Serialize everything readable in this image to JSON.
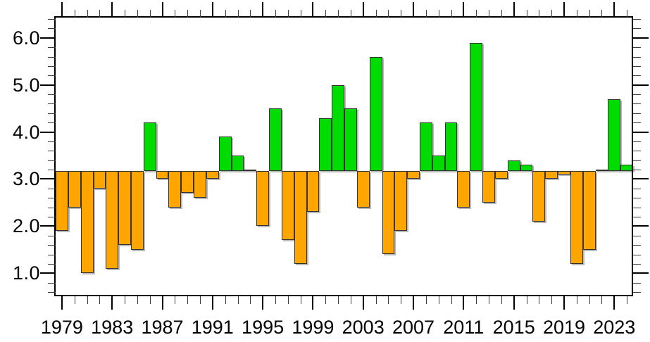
{
  "chart_data": {
    "type": "bar",
    "title": "",
    "xlabel": "",
    "ylabel": "",
    "grid": false,
    "legend": "none",
    "baseline": 3.17,
    "ylim": [
      0.51,
      6.43
    ],
    "x": [
      1979,
      1980,
      1981,
      1982,
      1983,
      1984,
      1985,
      1986,
      1987,
      1988,
      1989,
      1990,
      1991,
      1992,
      1993,
      1994,
      1995,
      1996,
      1997,
      1998,
      1999,
      2000,
      2001,
      2002,
      2003,
      2004,
      2005,
      2006,
      2007,
      2008,
      2009,
      2010,
      2011,
      2012,
      2013,
      2014,
      2015,
      2016,
      2017,
      2018,
      2019,
      2020,
      2021,
      2022,
      2023,
      2024
    ],
    "values": [
      1.9,
      2.4,
      1.0,
      2.8,
      1.1,
      1.6,
      1.5,
      4.2,
      3.0,
      2.4,
      2.7,
      2.6,
      3.0,
      3.9,
      3.5,
      3.2,
      2.0,
      4.5,
      1.7,
      1.2,
      2.3,
      4.3,
      5.0,
      4.5,
      2.4,
      5.6,
      1.4,
      1.9,
      3.0,
      4.2,
      3.5,
      4.2,
      2.4,
      5.9,
      2.5,
      3.0,
      3.4,
      3.3,
      2.1,
      3.0,
      3.1,
      1.2,
      1.5,
      3.2,
      4.7,
      3.3
    ],
    "y_major_ticks": [
      1.0,
      2.0,
      3.0,
      4.0,
      5.0,
      6.0
    ],
    "y_major_tick_labels": [
      "1.0",
      "2.0",
      "3.0",
      "4.0",
      "5.0",
      "6.0"
    ],
    "y_minor_step": 0.2,
    "x_major_tick_years": [
      1979,
      1983,
      1987,
      1991,
      1995,
      1999,
      2003,
      2007,
      2011,
      2015,
      2019,
      2023
    ],
    "x_major_tick_labels": [
      "1979",
      "1983",
      "1987",
      "1991",
      "1995",
      "1999",
      "2003",
      "2007",
      "2011",
      "2015",
      "2019",
      "2023"
    ],
    "colors": {
      "above_baseline": "#00dc00",
      "below_baseline": "#ffa500",
      "bar_edge": "#333333",
      "axis": "#000000",
      "minor_tick": "#3c3c3c",
      "background": "#ffffff",
      "text": "#000000"
    }
  }
}
